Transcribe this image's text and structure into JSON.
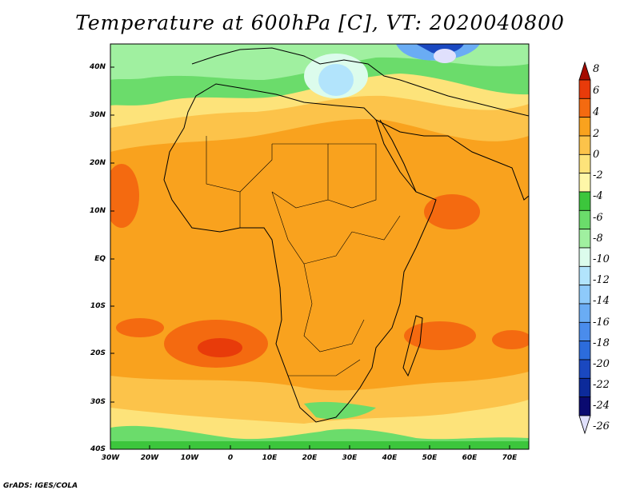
{
  "title": "Temperature at 600hPa [C], VT: 2020040800",
  "credit": "GrADS: IGES/COLA",
  "lat_labels": [
    "40N",
    "30N",
    "20N",
    "10N",
    "EQ",
    "10S",
    "20S",
    "30S",
    "40S"
  ],
  "lon_labels": [
    "30W",
    "20W",
    "10W",
    "0",
    "10E",
    "20E",
    "30E",
    "40E",
    "50E",
    "60E",
    "70E"
  ],
  "colorbar": {
    "labels": [
      "8",
      "6",
      "4",
      "2",
      "0",
      "-2",
      "-4",
      "-6",
      "-8",
      "-10",
      "-12",
      "-14",
      "-16",
      "-18",
      "-20",
      "-22",
      "-24",
      "-26"
    ],
    "colors": [
      "#a50a00",
      "#e83b0a",
      "#f46a10",
      "#f9a21e",
      "#fcc34a",
      "#fde37a",
      "#fef7a8",
      "#3cc63c",
      "#6bdc6b",
      "#a0f0a0",
      "#dcfcec",
      "#b2e4fc",
      "#8ecafa",
      "#6aacf4",
      "#4a8cec",
      "#2c6cdc",
      "#1a48c0",
      "#0c2a9a",
      "#0a0a70",
      "#e0e0fc"
    ]
  }
}
